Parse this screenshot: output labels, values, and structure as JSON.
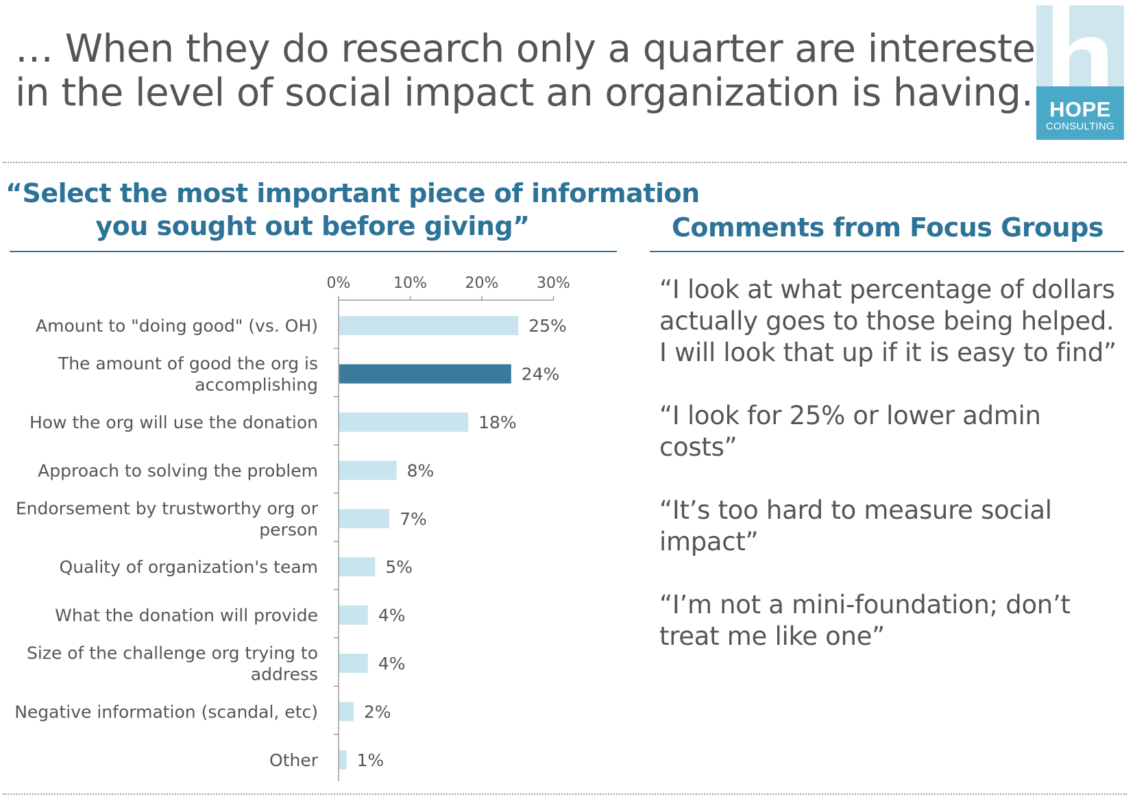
{
  "title_lines": [
    "… When they do research only a quarter are interested",
    "in the level of social impact an organization is having…"
  ],
  "logo": {
    "name": "HOPE",
    "sub": "CONSULTING",
    "bg_color": "#4aa9c8",
    "light_color": "#cfe6ef"
  },
  "left_heading_lines": [
    "“Select the most important piece of information",
    "you sought out before giving”"
  ],
  "right_heading": "Comments from Focus Groups",
  "comments": [
    "“I look at what percentage of dollars actually goes to those being helped.  I will look that up if it is easy to find”",
    "“I look for 25% or lower admin costs”",
    "“It’s too hard to measure social impact”",
    "“I’m not a mini-foundation; don’t treat me like one”"
  ],
  "colors": {
    "accent": "#2d7398",
    "bar_light": "#c8e4ef",
    "bar_highlight": "#3a7a9c",
    "text": "#555555"
  },
  "chart_data": {
    "type": "bar",
    "orientation": "horizontal",
    "title": "",
    "xlabel": "",
    "ylabel": "",
    "xlim": [
      0,
      30
    ],
    "ticks": [
      "0%",
      "10%",
      "20%",
      "30%"
    ],
    "tick_values": [
      0,
      10,
      20,
      30
    ],
    "grid": false,
    "categories": [
      [
        "Amount to \"doing good\" (vs. OH)"
      ],
      [
        "The amount of good the org is",
        "accomplishing"
      ],
      [
        "How the org will use the donation"
      ],
      [
        "Approach to solving the problem"
      ],
      [
        "Endorsement by trustworthy org or",
        "person"
      ],
      [
        "Quality of organization's team"
      ],
      [
        "What the donation will provide"
      ],
      [
        "Size of the challenge org trying to",
        "address"
      ],
      [
        "Negative information (scandal, etc)"
      ],
      [
        "Other"
      ]
    ],
    "values": [
      25,
      24,
      18,
      8,
      7,
      5,
      4,
      4,
      2,
      1
    ],
    "value_labels": [
      "25%",
      "24%",
      "18%",
      "8%",
      "7%",
      "5%",
      "4%",
      "4%",
      "2%",
      "1%"
    ],
    "highlighted": [
      false,
      true,
      false,
      false,
      false,
      false,
      false,
      false,
      false,
      false
    ]
  }
}
